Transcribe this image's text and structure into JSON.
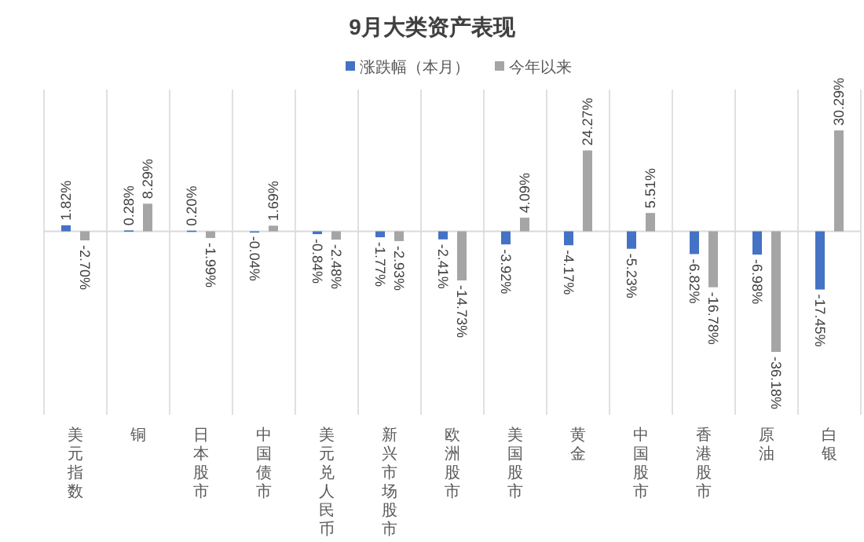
{
  "chart_data": {
    "type": "bar",
    "title": "9月大类资产表现",
    "categories": [
      "美元指数",
      "铜",
      "日本股市",
      "中国债市",
      "美元兑人民币",
      "新兴市场股市",
      "欧洲股市",
      "美国股市",
      "黄金",
      "中国股市",
      "香港股市",
      "原油",
      "白银"
    ],
    "series": [
      {
        "name": "涨跌幅（本月）",
        "color": "#4472c4",
        "values": [
          1.82,
          0.28,
          0.2,
          -0.04,
          -0.84,
          -1.77,
          -2.41,
          -3.92,
          -4.17,
          -5.23,
          -6.82,
          -6.98,
          -17.45
        ],
        "value_labels": [
          "1.82%",
          "0.28%",
          "0.20%",
          "-0.04%",
          "-0.84%",
          "-1.77%",
          "-2.41%",
          "-3.92%",
          "-4.17%",
          "-5.23%",
          "-6.82%",
          "-6.98%",
          "-17.45%"
        ]
      },
      {
        "name": "今年以来",
        "color": "#a5a5a5",
        "values": [
          -2.7,
          8.29,
          -1.99,
          1.69,
          -2.48,
          -2.93,
          -14.73,
          4.09,
          24.27,
          5.51,
          -16.78,
          -36.18,
          30.29
        ],
        "value_labels": [
          "-2.70%",
          "8.29%",
          "-1.99%",
          "1.69%",
          "-2.48%",
          "-2.93%",
          "-14.73%",
          "4.09%",
          "24.27%",
          "5.51%",
          "-16.78%",
          "-36.18%",
          "30.29%"
        ]
      }
    ],
    "grid": "x",
    "legend": "top"
  }
}
